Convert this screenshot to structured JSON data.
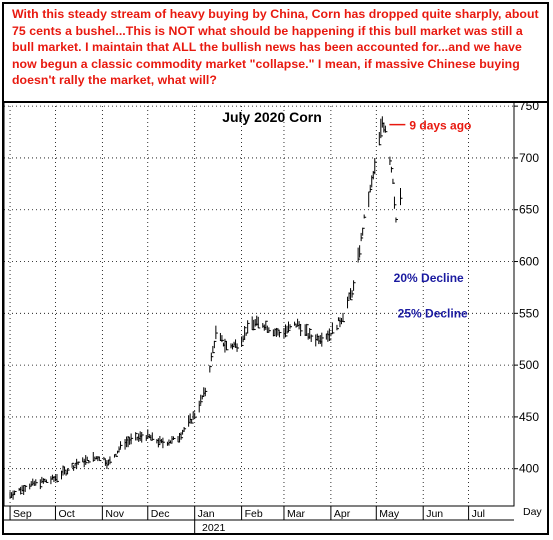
{
  "note": "With this steady stream of heavy buying by China, Corn has dropped quite sharply, about 75 cents a bushel...This is NOT what should be happening if this bull market was still a bull market. I maintain that  ALL the bullish news has been accounted for...and we have now begun a classic commodity market \"collapse.\" I mean, if massive Chinese buying doesn't rally the market, what will?",
  "colors": {
    "note": "#e8190f",
    "annotation_red": "#e8190f",
    "annotation_blue": "#1a1aa0",
    "bars": "#000000"
  },
  "chart_data": {
    "type": "bar",
    "subtype": "ohlc",
    "title": "July 2020 Corn",
    "xlabel": "Day",
    "ylabel": "",
    "ylim": [
      364,
      754
    ],
    "y_ticks": [
      400,
      450,
      500,
      550,
      600,
      650,
      700,
      750
    ],
    "x_ticks": [
      "Sep",
      "Oct",
      "Nov",
      "Dec",
      "Jan",
      "Feb",
      "Mar",
      "Apr",
      "May",
      "Jun",
      "Jul"
    ],
    "year_label": "2021",
    "grid": true,
    "series": [
      {
        "values": [
          [
            "2020-09-01",
            375
          ],
          [
            "2020-09-15",
            385
          ],
          [
            "2020-09-30",
            390
          ],
          [
            "2020-10-15",
            405
          ],
          [
            "2020-10-31",
            412
          ],
          [
            "2020-11-05",
            405
          ],
          [
            "2020-11-15",
            425
          ],
          [
            "2020-11-30",
            432
          ],
          [
            "2020-12-10",
            425
          ],
          [
            "2020-12-20",
            428
          ],
          [
            "2021-01-01",
            452
          ],
          [
            "2021-01-08",
            475
          ],
          [
            "2021-01-15",
            530
          ],
          [
            "2021-01-22",
            518
          ],
          [
            "2021-01-29",
            520
          ],
          [
            "2021-02-08",
            540
          ],
          [
            "2021-02-15",
            540
          ],
          [
            "2021-02-26",
            530
          ],
          [
            "2021-03-10",
            540
          ],
          [
            "2021-03-20",
            525
          ],
          [
            "2021-03-31",
            530
          ],
          [
            "2021-04-08",
            545
          ],
          [
            "2021-04-16",
            575
          ],
          [
            "2021-04-23",
            640
          ],
          [
            "2021-04-30",
            690
          ],
          [
            "2021-05-05",
            735
          ],
          [
            "2021-05-07",
            730
          ],
          [
            "2021-05-12",
            680
          ],
          [
            "2021-05-14",
            640
          ],
          [
            "2021-05-17",
            660
          ]
        ]
      }
    ],
    "annotations": [
      {
        "text": "9 days ago",
        "color": "red",
        "at": [
          "2021-05-07",
          735
        ]
      },
      {
        "text": "20% Decline",
        "color": "blue",
        "at": [
          "2021-05-31",
          584
        ]
      },
      {
        "text": "25% Decline",
        "color": "blue",
        "at": [
          "2021-05-31",
          550
        ]
      }
    ]
  }
}
